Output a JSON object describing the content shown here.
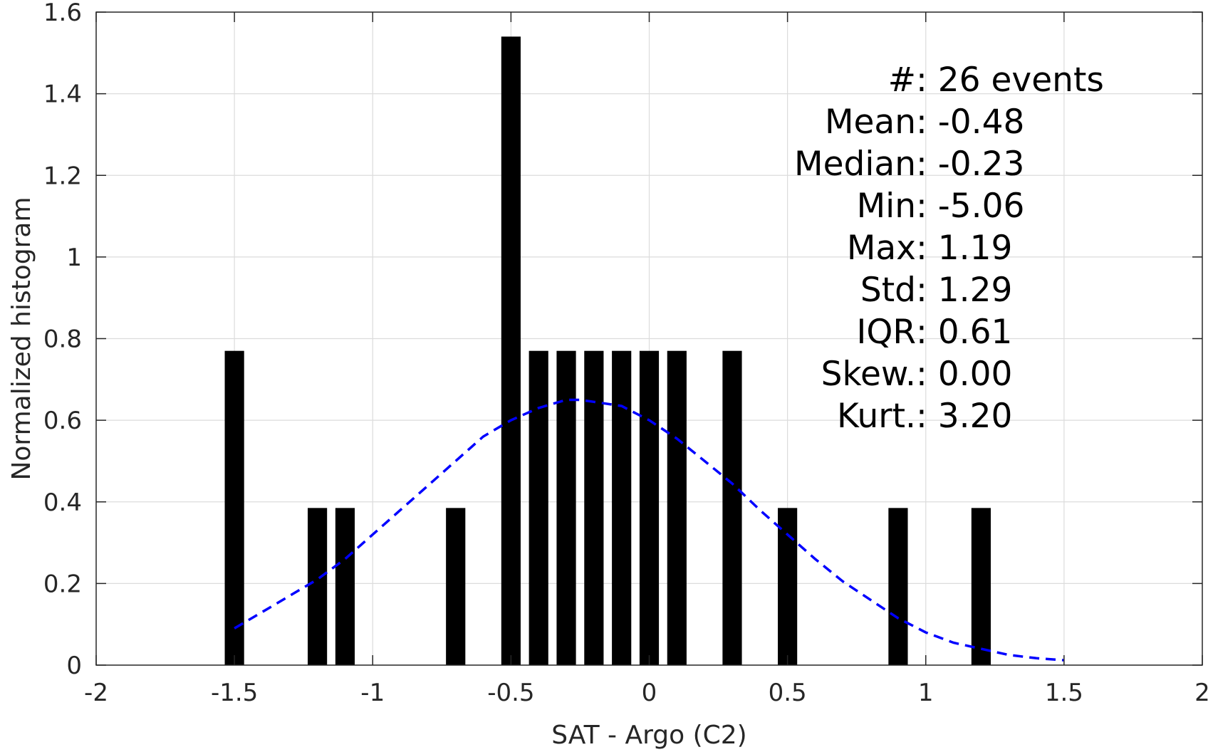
{
  "chart_data": {
    "type": "bar",
    "xlabel": "SAT - Argo (C2)",
    "ylabel": "Normalized histogram",
    "xlim": [
      -2,
      2
    ],
    "ylim": [
      0,
      1.6
    ],
    "grid": true,
    "xticks": [
      -2,
      -1.5,
      -1,
      -0.5,
      0,
      0.5,
      1,
      1.5,
      2
    ],
    "yticks": [
      0,
      0.2,
      0.4,
      0.6,
      0.8,
      1,
      1.2,
      1.4,
      1.6
    ],
    "xtick_labels": [
      "-2",
      "-1.5",
      "-1",
      "-0.5",
      "0",
      "0.5",
      "1",
      "1.5",
      "2"
    ],
    "ytick_labels": [
      "0",
      "0.2",
      "0.4",
      "0.6",
      "0.8",
      "1",
      "1.2",
      "1.4",
      "1.6"
    ],
    "bar_color": "#000000",
    "bar_width": 0.07,
    "bars": [
      {
        "x": -1.5,
        "y": 0.77
      },
      {
        "x": -1.2,
        "y": 0.385
      },
      {
        "x": -1.1,
        "y": 0.385
      },
      {
        "x": -0.7,
        "y": 0.385
      },
      {
        "x": -0.5,
        "y": 1.54
      },
      {
        "x": -0.4,
        "y": 0.77
      },
      {
        "x": -0.3,
        "y": 0.77
      },
      {
        "x": -0.2,
        "y": 0.77
      },
      {
        "x": -0.1,
        "y": 0.77
      },
      {
        "x": 0.0,
        "y": 0.77
      },
      {
        "x": 0.1,
        "y": 0.77
      },
      {
        "x": 0.3,
        "y": 0.77
      },
      {
        "x": 0.5,
        "y": 0.385
      },
      {
        "x": 0.9,
        "y": 0.385
      },
      {
        "x": 1.2,
        "y": 0.385
      }
    ],
    "fit_curve": {
      "color": "#0000ff",
      "style": "dashed",
      "x": [
        -1.5,
        -1.4,
        -1.3,
        -1.2,
        -1.1,
        -1.0,
        -0.9,
        -0.8,
        -0.7,
        -0.6,
        -0.5,
        -0.4,
        -0.3,
        -0.25,
        -0.2,
        -0.1,
        0.0,
        0.1,
        0.2,
        0.3,
        0.4,
        0.5,
        0.6,
        0.7,
        0.8,
        0.9,
        1.0,
        1.1,
        1.2,
        1.3,
        1.4,
        1.5
      ],
      "y": [
        0.09,
        0.13,
        0.17,
        0.21,
        0.26,
        0.32,
        0.38,
        0.44,
        0.5,
        0.56,
        0.6,
        0.63,
        0.65,
        0.65,
        0.645,
        0.635,
        0.6,
        0.555,
        0.5,
        0.445,
        0.38,
        0.32,
        0.26,
        0.205,
        0.16,
        0.115,
        0.08,
        0.055,
        0.04,
        0.025,
        0.017,
        0.012
      ]
    },
    "stats": [
      {
        "label": "#  ",
        "value": ": 26 events"
      },
      {
        "label": "Mean ",
        "value": ": -0.48"
      },
      {
        "label": "Median ",
        "value": ": -0.23"
      },
      {
        "label": "Min ",
        "value": ": -5.06"
      },
      {
        "label": "Max ",
        "value": ": 1.19"
      },
      {
        "label": "Std ",
        "value": ": 1.29"
      },
      {
        "label": "IQR ",
        "value": ": 0.61"
      },
      {
        "label": "Skew. ",
        "value": ": 0.00"
      },
      {
        "label": "Kurt. ",
        "value": ": 3.20"
      }
    ]
  }
}
